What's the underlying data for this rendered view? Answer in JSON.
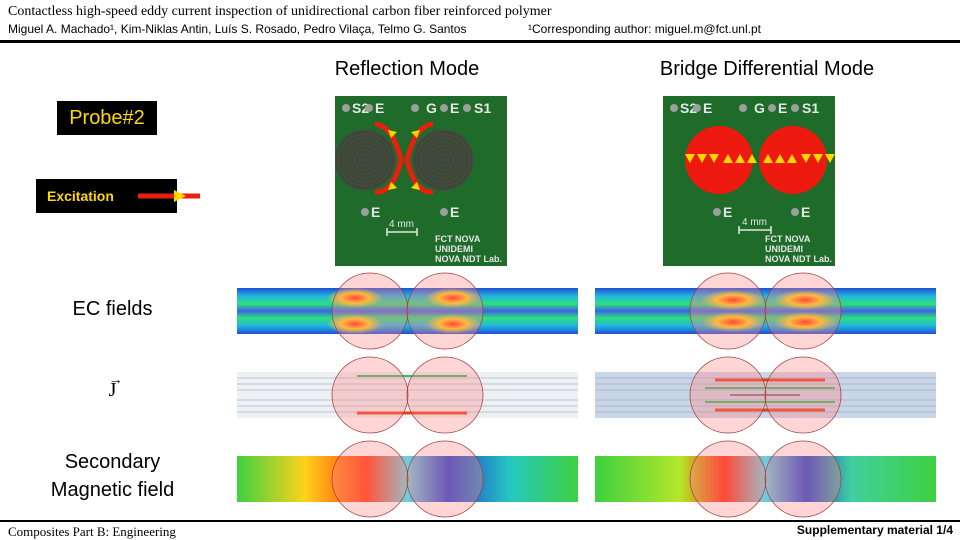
{
  "header": {
    "title": "Contactless high-speed eddy current inspection of unidirectional carbon fiber reinforced polymer",
    "authors": "Miguel A. Machado¹, Kim-Niklas Antin, Luís S. Rosado, Pedro Vilaça, Telmo G. Santos",
    "corresponding": "¹Corresponding author: miguel.m@fct.unl.pt"
  },
  "columns": {
    "left": "Reflection Mode",
    "right": "Bridge Differential Mode"
  },
  "labels": {
    "probe": "Probe#2",
    "excitation": "Excitation",
    "ec_fields": "EC fields",
    "current_density": "J",
    "secondary_line1": "Secondary",
    "secondary_line2": "Magnetic field"
  },
  "board": {
    "pads_top": [
      "S2",
      "E",
      "G",
      "E",
      "S1"
    ],
    "pads_bottom": [
      "E",
      "E"
    ],
    "scale": "4 mm",
    "logo_lines": [
      "FCT NOVA",
      "UNIDEMI",
      "NOVA NDT Lab."
    ]
  },
  "colors": {
    "accent": "#ffd800",
    "pcb": "#1e6b2a",
    "excitation_arrow": "#e81e0e"
  },
  "footer": {
    "journal": "Composites Part B: Engineering",
    "supplement": "Supplementary material 1/4"
  }
}
